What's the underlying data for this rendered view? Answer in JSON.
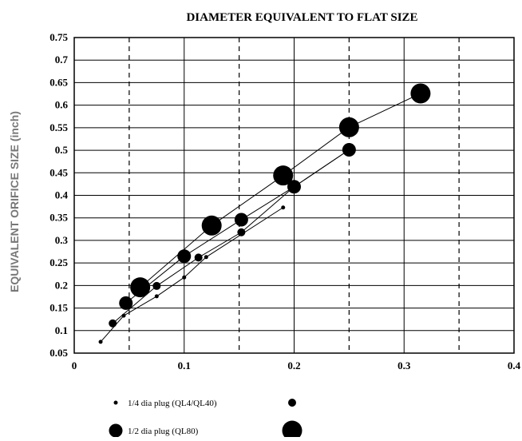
{
  "chart_data": {
    "type": "scatter",
    "title": "DIAMETER EQUIVALENT TO FLAT SIZE",
    "xlabel": "",
    "ylabel": "EQUIVALENT ORIFICE SIZE (inch)",
    "xlim": [
      0,
      0.4
    ],
    "ylim": [
      0.05,
      0.75
    ],
    "x_ticks": [
      {
        "value": 0,
        "label": "0"
      },
      {
        "value": 0.1,
        "label": "0.1"
      },
      {
        "value": 0.2,
        "label": "0.2"
      },
      {
        "value": 0.3,
        "label": "0.3"
      },
      {
        "value": 0.4,
        "label": "0.4"
      }
    ],
    "y_ticks": [
      {
        "value": 0.05,
        "label": "0.05"
      },
      {
        "value": 0.1,
        "label": "0.1"
      },
      {
        "value": 0.15,
        "label": "0.15"
      },
      {
        "value": 0.2,
        "label": "0.2"
      },
      {
        "value": 0.25,
        "label": "0.25"
      },
      {
        "value": 0.3,
        "label": "0.3"
      },
      {
        "value": 0.35,
        "label": "0.35"
      },
      {
        "value": 0.4,
        "label": "0.4"
      },
      {
        "value": 0.45,
        "label": "0.45"
      },
      {
        "value": 0.5,
        "label": "0.5"
      },
      {
        "value": 0.55,
        "label": "0.55"
      },
      {
        "value": 0.6,
        "label": "0.6"
      },
      {
        "value": 0.65,
        "label": "0.65"
      },
      {
        "value": 0.7,
        "label": "0.7"
      },
      {
        "value": 0.75,
        "label": "0.75"
      }
    ],
    "grid": {
      "solid_x": [
        0.1,
        0.2,
        0.3
      ],
      "dashed_x": [
        0.05,
        0.15,
        0.25,
        0.35
      ],
      "horizontal": true
    },
    "series": [
      {
        "marker": "small",
        "points": [
          [
            0.024,
            0.075
          ],
          [
            0.045,
            0.133
          ],
          [
            0.075,
            0.176
          ],
          [
            0.1,
            0.218
          ],
          [
            0.12,
            0.263
          ],
          [
            0.19,
            0.373
          ]
        ]
      },
      {
        "marker": "medium",
        "points": [
          [
            0.035,
            0.116
          ],
          [
            0.075,
            0.199
          ],
          [
            0.113,
            0.262
          ],
          [
            0.152,
            0.318
          ],
          [
            0.2,
            0.419
          ],
          [
            0.25,
            0.501
          ]
        ]
      },
      {
        "marker": "large",
        "points": [
          [
            0.047,
            0.161
          ],
          [
            0.1,
            0.265
          ],
          [
            0.152,
            0.346
          ],
          [
            0.2,
            0.419
          ],
          [
            0.25,
            0.501
          ]
        ]
      },
      {
        "marker": "xlarge",
        "points": [
          [
            0.06,
            0.196
          ],
          [
            0.125,
            0.333
          ],
          [
            0.19,
            0.444
          ],
          [
            0.25,
            0.551
          ],
          [
            0.315,
            0.626
          ]
        ]
      }
    ],
    "legend": [
      {
        "label": "1/4 dia plug (QL4/QL40)",
        "markers": [
          "small",
          "medium"
        ]
      },
      {
        "label": "1/2 dia plug (QL80)",
        "markers": [
          "large",
          "xlarge"
        ]
      }
    ],
    "legend_position": "bottom-left",
    "colors": {
      "marker": "#000000",
      "background": "#ffffff"
    }
  }
}
